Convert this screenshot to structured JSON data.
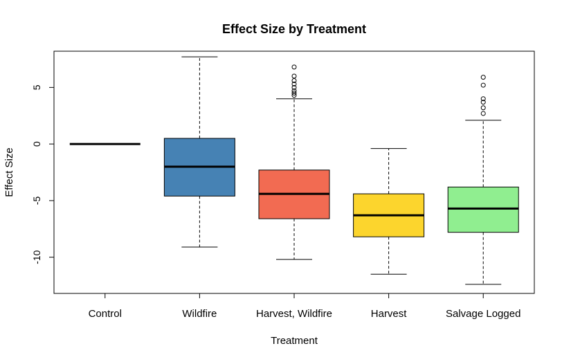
{
  "chart_data": {
    "type": "box",
    "title": "Effect Size by Treatment",
    "xlabel": "Treatment",
    "ylabel": "Effect Size",
    "ylim": [
      -13.2,
      8.2
    ],
    "yticks": [
      -10,
      -5,
      0,
      5
    ],
    "grid": false,
    "categories": [
      "Control",
      "Wildfire",
      "Harvest, Wildfire",
      "Harvest",
      "Salvage Logged"
    ],
    "colors": [
      "#ffffff",
      "#4682b4",
      "#f26b52",
      "#fcd52d",
      "#90ee90"
    ],
    "boxes": [
      {
        "whisker_low": 0,
        "q1": 0,
        "median": 0,
        "q3": 0,
        "whisker_high": 0,
        "outliers": []
      },
      {
        "whisker_low": -9.1,
        "q1": -4.6,
        "median": -2.0,
        "q3": 0.5,
        "whisker_high": 7.7,
        "outliers": []
      },
      {
        "whisker_low": -10.2,
        "q1": -6.6,
        "median": -4.4,
        "q3": -2.3,
        "whisker_high": 4.0,
        "outliers": [
          4.3,
          4.5,
          4.7,
          5.0,
          5.3,
          5.6,
          6.0,
          6.8
        ]
      },
      {
        "whisker_low": -11.5,
        "q1": -8.2,
        "median": -6.3,
        "q3": -4.4,
        "whisker_high": -0.4,
        "outliers": []
      },
      {
        "whisker_low": -12.4,
        "q1": -7.8,
        "median": -5.7,
        "q3": -3.8,
        "whisker_high": 2.1,
        "outliers": [
          2.7,
          3.2,
          3.7,
          4.0,
          5.2,
          5.9
        ]
      }
    ]
  }
}
